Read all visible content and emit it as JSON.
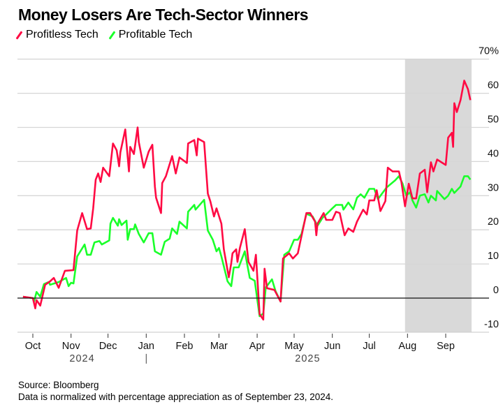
{
  "chart_data": {
    "type": "line",
    "title": "Money Losers Are Tech-Sector Winners",
    "ylim": [
      -10,
      70
    ],
    "yticks": [
      -10,
      0,
      10,
      20,
      30,
      40,
      50,
      60,
      70
    ],
    "ytick_labels": [
      "-10",
      "0",
      "10",
      "20",
      "30",
      "40",
      "50",
      "60",
      "70%"
    ],
    "xlim": [
      "2024-09-20",
      "2025-09-26"
    ],
    "xticks": [
      "2024-10-01",
      "2024-11-01",
      "2024-12-01",
      "2025-01-01",
      "2025-02-01",
      "2025-03-01",
      "2025-04-01",
      "2025-05-01",
      "2025-06-01",
      "2025-07-01",
      "2025-08-01",
      "2025-09-01"
    ],
    "xtick_labels": [
      "Oct",
      "Nov",
      "Dec",
      "Jan",
      "Feb",
      "Mar",
      "Apr",
      "May",
      "Jun",
      "Jul",
      "Aug",
      "Sep"
    ],
    "year_labels": [
      {
        "label": "2024",
        "at": "2024-11-10"
      },
      {
        "label": "2025",
        "at": "2025-05-12"
      }
    ],
    "year_divider": "2025-01-01",
    "grid": true,
    "legend_position": "top-left",
    "shaded_range": [
      "2025-07-30",
      "2025-09-22"
    ],
    "shade_color": "#d9d9d9",
    "series": [
      {
        "name": "Profitless Tech",
        "color": "#ff0a43",
        "points": [
          [
            "2024-09-23",
            0.4
          ],
          [
            "2024-10-01",
            0
          ],
          [
            "2024-10-03",
            -3
          ],
          [
            "2024-10-04",
            -0.6
          ],
          [
            "2024-10-07",
            -2.2
          ],
          [
            "2024-10-11",
            3.9
          ],
          [
            "2024-10-15",
            4.9
          ],
          [
            "2024-10-18",
            5.9
          ],
          [
            "2024-10-22",
            3
          ],
          [
            "2024-10-27",
            8
          ],
          [
            "2024-11-03",
            8.2
          ],
          [
            "2024-11-06",
            19.8
          ],
          [
            "2024-11-10",
            24.9
          ],
          [
            "2024-11-14",
            20.2
          ],
          [
            "2024-11-17",
            20.4
          ],
          [
            "2024-11-19",
            26.3
          ],
          [
            "2024-11-21",
            34.7
          ],
          [
            "2024-11-23",
            36.5
          ],
          [
            "2024-11-25",
            34
          ],
          [
            "2024-11-27",
            38.2
          ],
          [
            "2024-12-02",
            35.7
          ],
          [
            "2024-12-05",
            45.3
          ],
          [
            "2024-12-08",
            43.3
          ],
          [
            "2024-12-10",
            38.6
          ],
          [
            "2024-12-11",
            42.7
          ],
          [
            "2024-12-15",
            49.4
          ],
          [
            "2024-12-18",
            37.1
          ],
          [
            "2024-12-19",
            44.3
          ],
          [
            "2024-12-22",
            42.2
          ],
          [
            "2024-12-25",
            50
          ],
          [
            "2024-12-26",
            45.7
          ],
          [
            "2024-12-30",
            38.2
          ],
          [
            "2025-01-03",
            42.9
          ],
          [
            "2025-01-06",
            44.9
          ],
          [
            "2025-01-08",
            32.7
          ],
          [
            "2025-01-09",
            29.4
          ],
          [
            "2025-01-13",
            24.9
          ],
          [
            "2025-01-14",
            33.7
          ],
          [
            "2025-01-17",
            35.7
          ],
          [
            "2025-01-22",
            41.6
          ],
          [
            "2025-01-25",
            36.5
          ],
          [
            "2025-01-28",
            41.2
          ],
          [
            "2025-02-03",
            39.6
          ],
          [
            "2025-02-04",
            45.3
          ],
          [
            "2025-02-09",
            46.3
          ],
          [
            "2025-02-11",
            41.8
          ],
          [
            "2025-02-12",
            46.7
          ],
          [
            "2025-02-17",
            45.7
          ],
          [
            "2025-02-20",
            30.6
          ],
          [
            "2025-02-22",
            28.4
          ],
          [
            "2025-02-25",
            23.9
          ],
          [
            "2025-02-27",
            26.3
          ],
          [
            "2025-03-03",
            21.8
          ],
          [
            "2025-03-05",
            14.3
          ],
          [
            "2025-03-09",
            6.1
          ],
          [
            "2025-03-11",
            10.2
          ],
          [
            "2025-03-12",
            13.1
          ],
          [
            "2025-03-15",
            14.3
          ],
          [
            "2025-03-16",
            10.6
          ],
          [
            "2025-03-18",
            14.7
          ],
          [
            "2025-03-22",
            20.2
          ],
          [
            "2025-03-25",
            10.6
          ],
          [
            "2025-03-29",
            8
          ],
          [
            "2025-03-31",
            12.7
          ],
          [
            "2025-04-03",
            -4.7
          ],
          [
            "2025-04-06",
            -6.3
          ],
          [
            "2025-04-07",
            8.6
          ],
          [
            "2025-04-09",
            2.9
          ],
          [
            "2025-04-15",
            2.4
          ],
          [
            "2025-04-20",
            -1
          ],
          [
            "2025-04-22",
            11.6
          ],
          [
            "2025-04-27",
            13.1
          ],
          [
            "2025-04-30",
            11.6
          ],
          [
            "2025-05-04",
            13.1
          ],
          [
            "2025-05-07",
            18.2
          ],
          [
            "2025-05-11",
            24.9
          ],
          [
            "2025-05-14",
            24.9
          ],
          [
            "2025-05-18",
            22.4
          ],
          [
            "2025-05-19",
            18.4
          ],
          [
            "2025-05-20",
            21.8
          ],
          [
            "2025-05-25",
            24.9
          ],
          [
            "2025-05-27",
            22.9
          ],
          [
            "2025-06-01",
            22.9
          ],
          [
            "2025-06-04",
            25.3
          ],
          [
            "2025-06-07",
            24.9
          ],
          [
            "2025-06-11",
            18.4
          ],
          [
            "2025-06-14",
            20.4
          ],
          [
            "2025-06-18",
            19.4
          ],
          [
            "2025-06-21",
            22.4
          ],
          [
            "2025-06-26",
            25.9
          ],
          [
            "2025-06-29",
            24.5
          ],
          [
            "2025-07-01",
            28.6
          ],
          [
            "2025-07-05",
            28.6
          ],
          [
            "2025-07-07",
            31.6
          ],
          [
            "2025-07-10",
            25.5
          ],
          [
            "2025-07-14",
            28.4
          ],
          [
            "2025-07-16",
            38.2
          ],
          [
            "2025-07-20",
            37.1
          ],
          [
            "2025-07-25",
            37.1
          ],
          [
            "2025-07-27",
            34.1
          ],
          [
            "2025-07-30",
            26.9
          ],
          [
            "2025-08-02",
            33.5
          ],
          [
            "2025-08-05",
            29.2
          ],
          [
            "2025-08-08",
            29.2
          ],
          [
            "2025-08-11",
            36.5
          ],
          [
            "2025-08-15",
            37.6
          ],
          [
            "2025-08-17",
            31
          ],
          [
            "2025-08-20",
            39.8
          ],
          [
            "2025-08-22",
            37.1
          ],
          [
            "2025-08-25",
            40.6
          ],
          [
            "2025-09-01",
            39
          ],
          [
            "2025-09-03",
            47
          ],
          [
            "2025-09-06",
            48.4
          ],
          [
            "2025-09-07",
            44.3
          ],
          [
            "2025-09-08",
            57.1
          ],
          [
            "2025-09-10",
            54.5
          ],
          [
            "2025-09-13",
            58
          ],
          [
            "2025-09-16",
            63.7
          ],
          [
            "2025-09-19",
            61.2
          ],
          [
            "2025-09-21",
            58
          ]
        ]
      },
      {
        "name": "Profitable Tech",
        "color": "#1aff2a",
        "points": [
          [
            "2024-09-23",
            0.4
          ],
          [
            "2024-10-01",
            0
          ],
          [
            "2024-10-02",
            -1
          ],
          [
            "2024-10-04",
            1.8
          ],
          [
            "2024-10-07",
            0.4
          ],
          [
            "2024-10-10",
            4.1
          ],
          [
            "2024-10-14",
            4.7
          ],
          [
            "2024-10-15",
            3.9
          ],
          [
            "2024-10-22",
            4.7
          ],
          [
            "2024-10-28",
            5.9
          ],
          [
            "2024-10-30",
            3.5
          ],
          [
            "2024-11-01",
            4.5
          ],
          [
            "2024-11-03",
            4.3
          ],
          [
            "2024-11-06",
            12.2
          ],
          [
            "2024-11-12",
            15.7
          ],
          [
            "2024-11-14",
            12.7
          ],
          [
            "2024-11-17",
            12.7
          ],
          [
            "2024-11-20",
            16.3
          ],
          [
            "2024-11-24",
            16.7
          ],
          [
            "2024-11-26",
            15.7
          ],
          [
            "2024-12-02",
            16.9
          ],
          [
            "2024-12-03",
            21.8
          ],
          [
            "2024-12-05",
            23.5
          ],
          [
            "2024-12-09",
            21.2
          ],
          [
            "2024-12-10",
            23.1
          ],
          [
            "2024-12-12",
            21.4
          ],
          [
            "2024-12-16",
            22.7
          ],
          [
            "2024-12-17",
            17.1
          ],
          [
            "2024-12-19",
            20.2
          ],
          [
            "2024-12-22",
            20.2
          ],
          [
            "2024-12-23",
            21.6
          ],
          [
            "2024-12-26",
            18.8
          ],
          [
            "2024-12-30",
            16.3
          ],
          [
            "2025-01-03",
            19
          ],
          [
            "2025-01-06",
            19
          ],
          [
            "2025-01-08",
            13.7
          ],
          [
            "2025-01-13",
            12.7
          ],
          [
            "2025-01-16",
            16.5
          ],
          [
            "2025-01-20",
            17.4
          ],
          [
            "2025-01-22",
            20.4
          ],
          [
            "2025-01-26",
            18.8
          ],
          [
            "2025-01-28",
            22.4
          ],
          [
            "2025-02-03",
            20.4
          ],
          [
            "2025-02-04",
            25.3
          ],
          [
            "2025-02-09",
            27.3
          ],
          [
            "2025-02-10",
            25.9
          ],
          [
            "2025-02-17",
            28.8
          ],
          [
            "2025-02-20",
            19.8
          ],
          [
            "2025-02-24",
            17.1
          ],
          [
            "2025-02-27",
            13.7
          ],
          [
            "2025-03-01",
            14.7
          ],
          [
            "2025-03-03",
            12.2
          ],
          [
            "2025-03-08",
            4.9
          ],
          [
            "2025-03-11",
            3.5
          ],
          [
            "2025-03-13",
            9
          ],
          [
            "2025-03-17",
            9
          ],
          [
            "2025-03-22",
            13.7
          ],
          [
            "2025-03-26",
            5.9
          ],
          [
            "2025-03-30",
            5.1
          ],
          [
            "2025-04-03",
            -5.3
          ],
          [
            "2025-04-06",
            -4.5
          ],
          [
            "2025-04-08",
            3.1
          ],
          [
            "2025-04-13",
            5.5
          ],
          [
            "2025-04-16",
            2
          ],
          [
            "2025-04-20",
            -1
          ],
          [
            "2025-04-23",
            12.7
          ],
          [
            "2025-04-27",
            13.7
          ],
          [
            "2025-05-01",
            17.1
          ],
          [
            "2025-05-04",
            17.1
          ],
          [
            "2025-05-07",
            18.8
          ],
          [
            "2025-05-11",
            24.7
          ],
          [
            "2025-05-16",
            23.9
          ],
          [
            "2025-05-20",
            21.2
          ],
          [
            "2025-05-24",
            23.5
          ],
          [
            "2025-05-27",
            24.5
          ],
          [
            "2025-06-01",
            26.3
          ],
          [
            "2025-06-04",
            27.3
          ],
          [
            "2025-06-09",
            27.3
          ],
          [
            "2025-06-10",
            25.9
          ],
          [
            "2025-06-14",
            28
          ],
          [
            "2025-06-18",
            26
          ],
          [
            "2025-06-21",
            29.4
          ],
          [
            "2025-06-24",
            30.4
          ],
          [
            "2025-06-27",
            29.4
          ],
          [
            "2025-07-01",
            32
          ],
          [
            "2025-07-05",
            32
          ],
          [
            "2025-07-08",
            29
          ],
          [
            "2025-07-15",
            32.4
          ],
          [
            "2025-07-22",
            34.5
          ],
          [
            "2025-07-25",
            35.7
          ],
          [
            "2025-07-28",
            33.5
          ],
          [
            "2025-07-31",
            30
          ],
          [
            "2025-08-03",
            31
          ],
          [
            "2025-08-05",
            28.6
          ],
          [
            "2025-08-08",
            26.5
          ],
          [
            "2025-08-11",
            30
          ],
          [
            "2025-08-15",
            30.4
          ],
          [
            "2025-08-18",
            28
          ],
          [
            "2025-08-20",
            30
          ],
          [
            "2025-08-24",
            28.6
          ],
          [
            "2025-08-25",
            31.4
          ],
          [
            "2025-08-31",
            29
          ],
          [
            "2025-09-03",
            30
          ],
          [
            "2025-09-06",
            32
          ],
          [
            "2025-09-08",
            30.8
          ],
          [
            "2025-09-13",
            32.7
          ],
          [
            "2025-09-16",
            35.7
          ],
          [
            "2025-09-19",
            35.7
          ],
          [
            "2025-09-21",
            34.7
          ]
        ]
      }
    ]
  },
  "footer": {
    "source": "Source: Bloomberg",
    "note": "Data is normalized with percentage appreciation as of September 23, 2024."
  }
}
